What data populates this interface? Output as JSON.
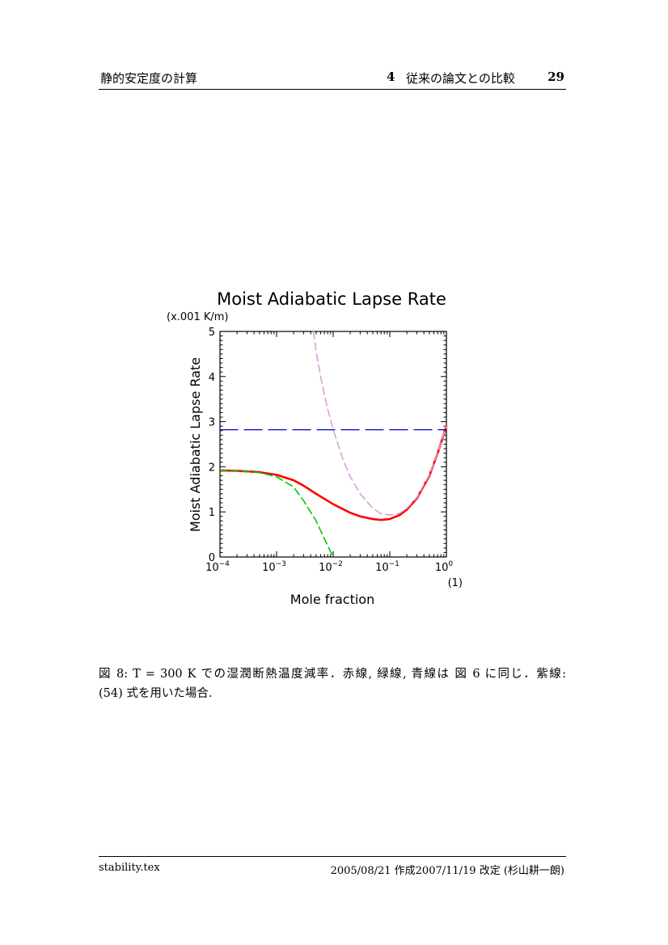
{
  "header": {
    "left_title": "静的安定度の計算",
    "section_number": "4",
    "section_title": "従来の論文との比較",
    "page_number": "29"
  },
  "chart_data": {
    "type": "line",
    "title": "Moist Adiabatic Lapse Rate",
    "unit_label": "(x.001 K/m)",
    "ylabel": "Moist Adiabatic Lapse Rate",
    "xlabel": "Mole fraction",
    "x_unit_label": "(1)",
    "x_scale": "log",
    "xlim": [
      0.0001,
      1
    ],
    "ylim": [
      0,
      5
    ],
    "y_ticks": [
      "0",
      "1",
      "2",
      "3",
      "4",
      "5"
    ],
    "x_ticks": [
      {
        "value": 0.0001,
        "base": "10",
        "exp": "−4"
      },
      {
        "value": 0.001,
        "base": "10",
        "exp": "−3"
      },
      {
        "value": 0.01,
        "base": "10",
        "exp": "−2"
      },
      {
        "value": 0.1,
        "base": "10",
        "exp": "−1"
      },
      {
        "value": 1,
        "base": "10",
        "exp": "0"
      }
    ],
    "grid": false,
    "series": [
      {
        "color": "#ff0000",
        "dash": "solid",
        "x": [
          0.0001,
          0.0002,
          0.0005,
          0.001,
          0.002,
          0.003,
          0.005,
          0.01,
          0.02,
          0.03,
          0.05,
          0.07,
          0.1,
          0.15,
          0.2,
          0.3,
          0.5,
          0.7,
          1.0
        ],
        "y": [
          1.92,
          1.91,
          1.88,
          1.82,
          1.7,
          1.58,
          1.4,
          1.17,
          0.98,
          0.9,
          0.84,
          0.82,
          0.84,
          0.93,
          1.05,
          1.3,
          1.8,
          2.3,
          2.9
        ]
      },
      {
        "color": "#00c800",
        "dash": "dashed",
        "x": [
          0.0001,
          0.0002,
          0.0005,
          0.001,
          0.002,
          0.003,
          0.005,
          0.007,
          0.01
        ],
        "y": [
          1.92,
          1.91,
          1.87,
          1.78,
          1.55,
          1.25,
          0.8,
          0.4,
          0.0
        ]
      },
      {
        "color": "#0000cc",
        "dash": "longdash",
        "x": [
          0.0001,
          1.0
        ],
        "y": [
          2.82,
          2.82
        ]
      },
      {
        "color": "#d8a0d8",
        "dash": "dashed",
        "x": [
          0.0045,
          0.005,
          0.006,
          0.007,
          0.008,
          0.01,
          0.015,
          0.02,
          0.03,
          0.05,
          0.07,
          0.1,
          0.15,
          0.2,
          0.3,
          0.5,
          0.7,
          1.0
        ],
        "y": [
          5.0,
          4.55,
          4.0,
          3.6,
          3.28,
          2.82,
          2.15,
          1.78,
          1.4,
          1.08,
          0.96,
          0.93,
          0.97,
          1.08,
          1.32,
          1.82,
          2.3,
          2.9
        ]
      }
    ]
  },
  "caption": {
    "line1": "図 8: T = 300 K での湿潤断熱温度減率．赤線, 緑線, 青線は 図 6 に同じ．紫線:",
    "line2": "(54) 式を用いた場合."
  },
  "footer": {
    "left": "stability.tex",
    "right": "2005/08/21 作成2007/11/19 改定 (杉山耕一朗)"
  }
}
